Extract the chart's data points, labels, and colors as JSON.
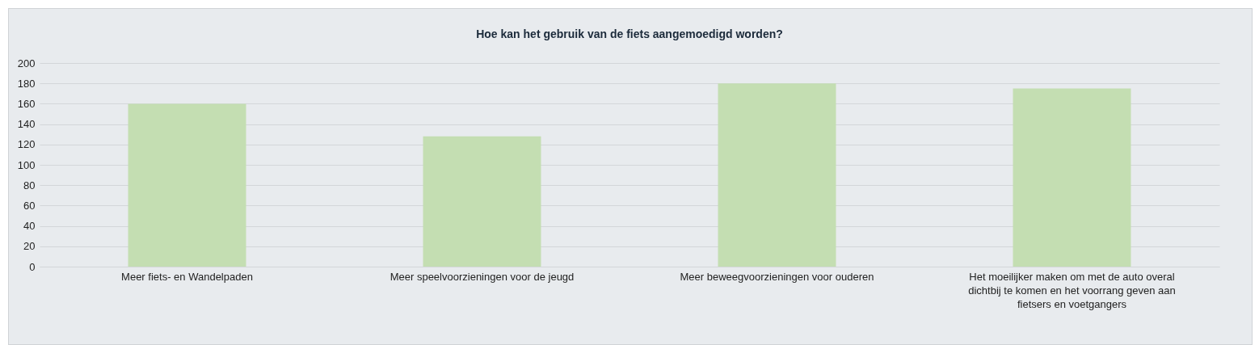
{
  "chart_data": {
    "type": "bar",
    "title": "Hoe kan het gebruik van de fiets aangemoedigd worden?",
    "categories": [
      "Meer fiets- en Wandelpaden",
      "Meer speelvoorzieningen voor de jeugd",
      "Meer beweegvoorzieningen voor ouderen",
      "Het moeilijker maken om met de auto overal dichtbij te komen en het voorrang geven aan fietsers en voetgangers"
    ],
    "values": [
      160,
      128,
      180,
      175
    ],
    "color": "#c4deb2",
    "ylim": [
      0,
      200
    ],
    "yticks": [
      0,
      20,
      40,
      60,
      80,
      100,
      120,
      140,
      160,
      180,
      200
    ],
    "grid": true
  }
}
